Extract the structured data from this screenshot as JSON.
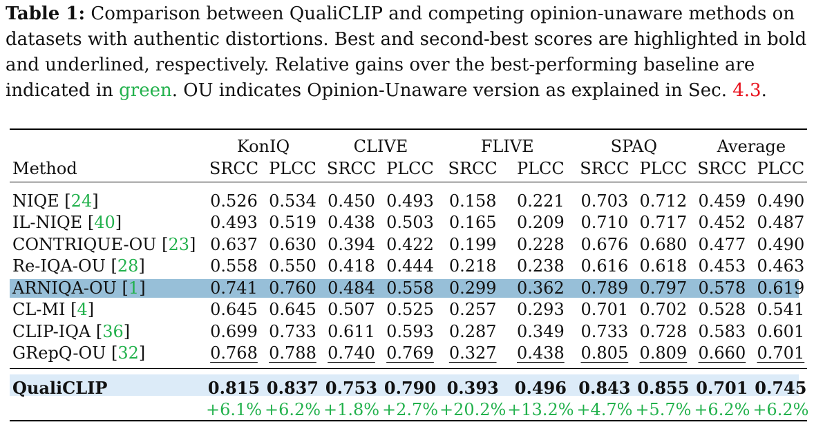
{
  "caption": {
    "label": "Table 1:",
    "part1": "Comparison between QualiCLIP and competing opinion-unaware methods on datasets with authentic distortions. Best and second-best scores are highlighted in bold and underlined, respectively. Relative gains over the best-performing baseline are indicated in ",
    "green_word": "green",
    "part2": ". OU indicates Opinion-Unaware version as explained in Sec. ",
    "sec_ref": "4.3",
    "end": "."
  },
  "colors": {
    "highlight_row": "#97bfd8",
    "proposed_row": "#dcebf8",
    "gain": "#22b14c",
    "ref": "#22b14c",
    "sec_ref": "#e8111c"
  },
  "table": {
    "method_header": "Method",
    "datasets": [
      "KonIQ",
      "CLIVE",
      "FLIVE",
      "SPAQ",
      "Average"
    ],
    "metrics": [
      "SRCC",
      "PLCC",
      "SRCC",
      "PLCC",
      "SRCC",
      "PLCC",
      "SRCC",
      "PLCC",
      "SRCC",
      "PLCC"
    ],
    "rows": [
      {
        "name": "NIQE [",
        "ref": "24",
        "close": "]",
        "values": [
          "0.526",
          "0.534",
          "0.450",
          "0.493",
          "0.158",
          "0.221",
          "0.703",
          "0.712",
          "0.459",
          "0.490"
        ]
      },
      {
        "name": "IL-NIQE [",
        "ref": "40",
        "close": "]",
        "values": [
          "0.493",
          "0.519",
          "0.438",
          "0.503",
          "0.165",
          "0.209",
          "0.710",
          "0.717",
          "0.452",
          "0.487"
        ]
      },
      {
        "name": "CONTRIQUE-OU [",
        "ref": "23",
        "close": "]",
        "values": [
          "0.637",
          "0.630",
          "0.394",
          "0.422",
          "0.199",
          "0.228",
          "0.676",
          "0.680",
          "0.477",
          "0.490"
        ]
      },
      {
        "name": "Re-IQA-OU [",
        "ref": "28",
        "close": "]",
        "values": [
          "0.558",
          "0.550",
          "0.418",
          "0.444",
          "0.218",
          "0.238",
          "0.616",
          "0.618",
          "0.453",
          "0.463"
        ]
      },
      {
        "name": "ARNIQA-OU [",
        "ref": "1",
        "close": "]",
        "values": [
          "0.741",
          "0.760",
          "0.484",
          "0.558",
          "0.299",
          "0.362",
          "0.789",
          "0.797",
          "0.578",
          "0.619"
        ]
      },
      {
        "name": "CL-MI [",
        "ref": "4",
        "close": "]",
        "values": [
          "0.645",
          "0.645",
          "0.507",
          "0.525",
          "0.257",
          "0.293",
          "0.701",
          "0.702",
          "0.528",
          "0.541"
        ]
      },
      {
        "name": "CLIP-IQA [",
        "ref": "36",
        "close": "]",
        "values": [
          "0.699",
          "0.733",
          "0.611",
          "0.593",
          "0.287",
          "0.349",
          "0.733",
          "0.728",
          "0.583",
          "0.601"
        ]
      },
      {
        "name": "GRepQ-OU [",
        "ref": "32",
        "close": "]",
        "values": [
          "0.768",
          "0.788",
          "0.740",
          "0.769",
          "0.327",
          "0.438",
          "0.805",
          "0.809",
          "0.660",
          "0.701"
        ]
      }
    ],
    "proposed": {
      "name": "QualiCLIP",
      "values": [
        "0.815",
        "0.837",
        "0.753",
        "0.790",
        "0.393",
        "0.496",
        "0.843",
        "0.855",
        "0.701",
        "0.745"
      ],
      "gains": [
        "+6.1%",
        "+6.2%",
        "+1.8%",
        "+2.7%",
        "+20.2%",
        "+13.2%",
        "+4.7%",
        "+5.7%",
        "+6.2%",
        "+6.2%"
      ]
    }
  }
}
